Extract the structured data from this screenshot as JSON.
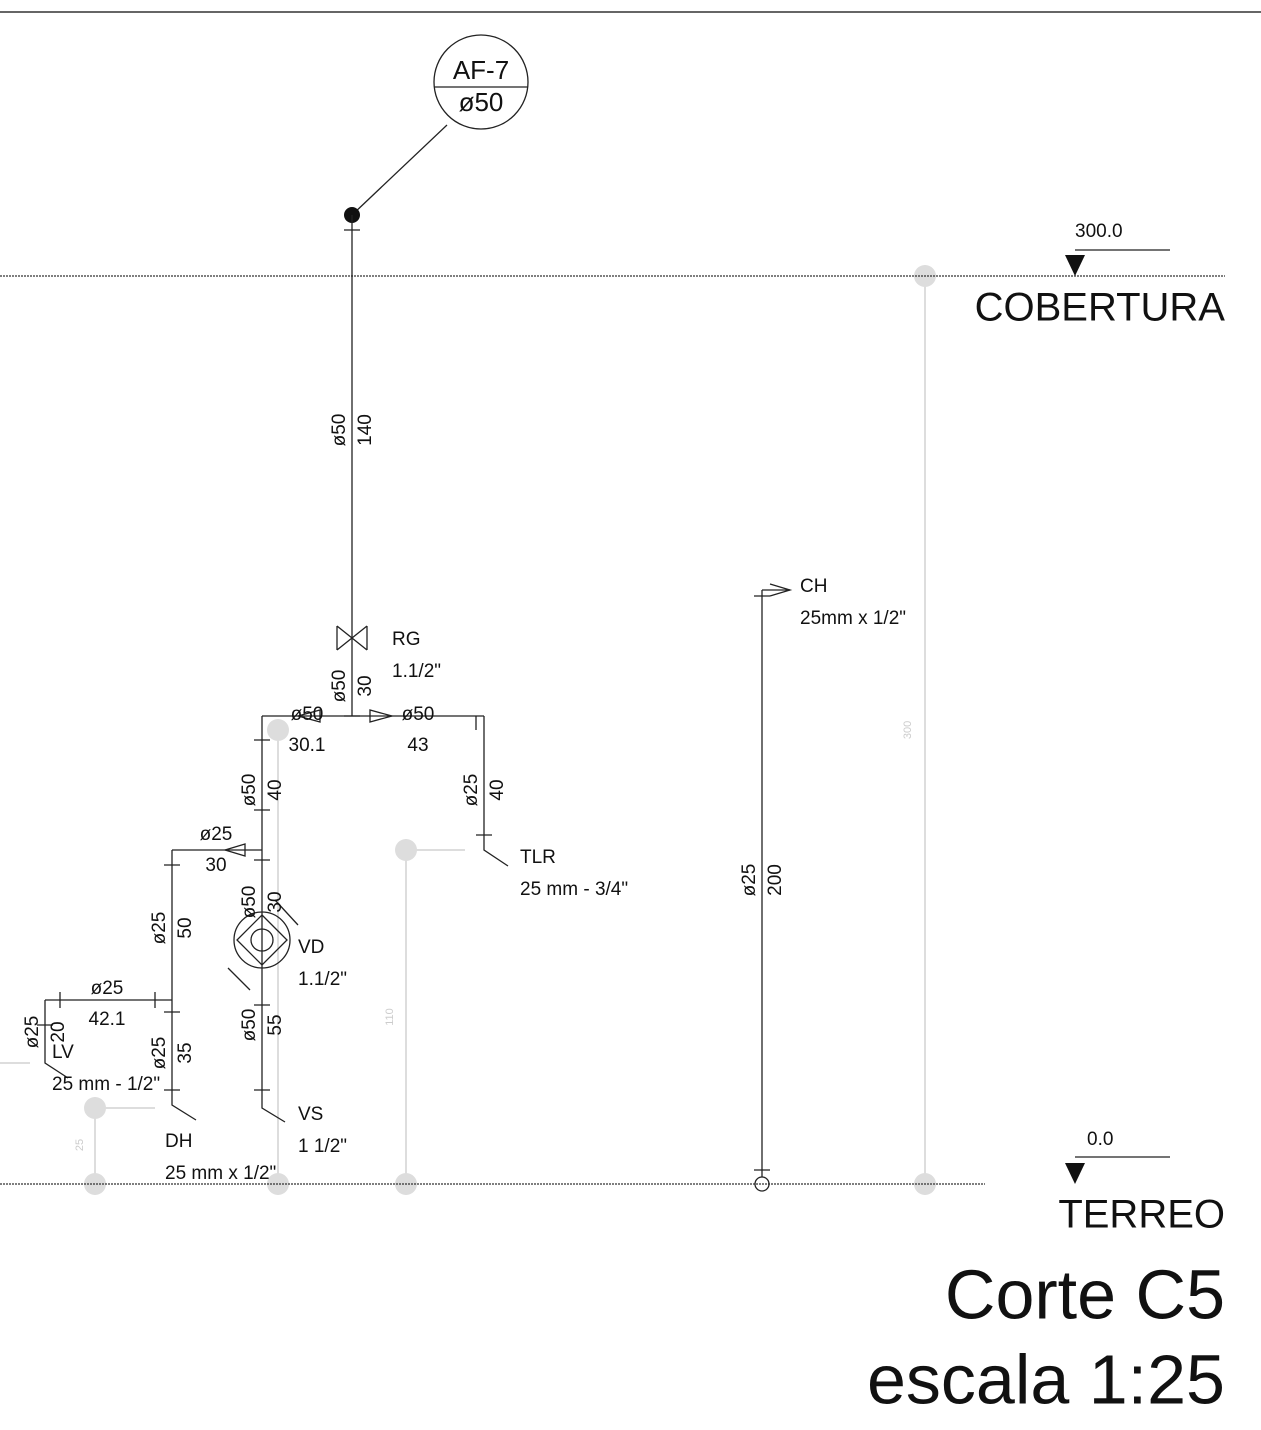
{
  "tag": {
    "code": "AF-7",
    "diameter": "ø50"
  },
  "levels": [
    {
      "elevation": "300.0",
      "name": "COBERTURA"
    },
    {
      "elevation": "0.0",
      "name": "TERREO"
    }
  ],
  "title": "Corte C5",
  "scale": "escala 1:25",
  "fixtures": [
    {
      "name": "RG",
      "size": "1.1/2\""
    },
    {
      "name": "CH",
      "size": "25mm x 1/2\""
    },
    {
      "name": "TLR",
      "size": "25 mm - 3/4\""
    },
    {
      "name": "VD",
      "size": "1.1/2\""
    },
    {
      "name": "LV",
      "size": "25 mm - 1/2\""
    },
    {
      "name": "DH",
      "size": "25 mm x 1/2\""
    },
    {
      "name": "VS",
      "size": "1 1/2\""
    }
  ],
  "pipes": [
    {
      "diameter": "ø50",
      "length": "140"
    },
    {
      "diameter": "ø50",
      "length": "30"
    },
    {
      "diameter": "ø50",
      "length": "30.1"
    },
    {
      "diameter": "ø50",
      "length": "43"
    },
    {
      "diameter": "ø50",
      "length": "40"
    },
    {
      "diameter": "ø25",
      "length": "40"
    },
    {
      "diameter": "ø25",
      "length": "30"
    },
    {
      "diameter": "ø50",
      "length": "30"
    },
    {
      "diameter": "ø25",
      "length": "50"
    },
    {
      "diameter": "ø25",
      "length": "42.1"
    },
    {
      "diameter": "ø50",
      "length": "55"
    },
    {
      "diameter": "ø25",
      "length": "20"
    },
    {
      "diameter": "ø25",
      "length": "35"
    },
    {
      "diameter": "ø25",
      "length": "200"
    }
  ],
  "dimensions": [
    "300",
    "110",
    "25"
  ]
}
